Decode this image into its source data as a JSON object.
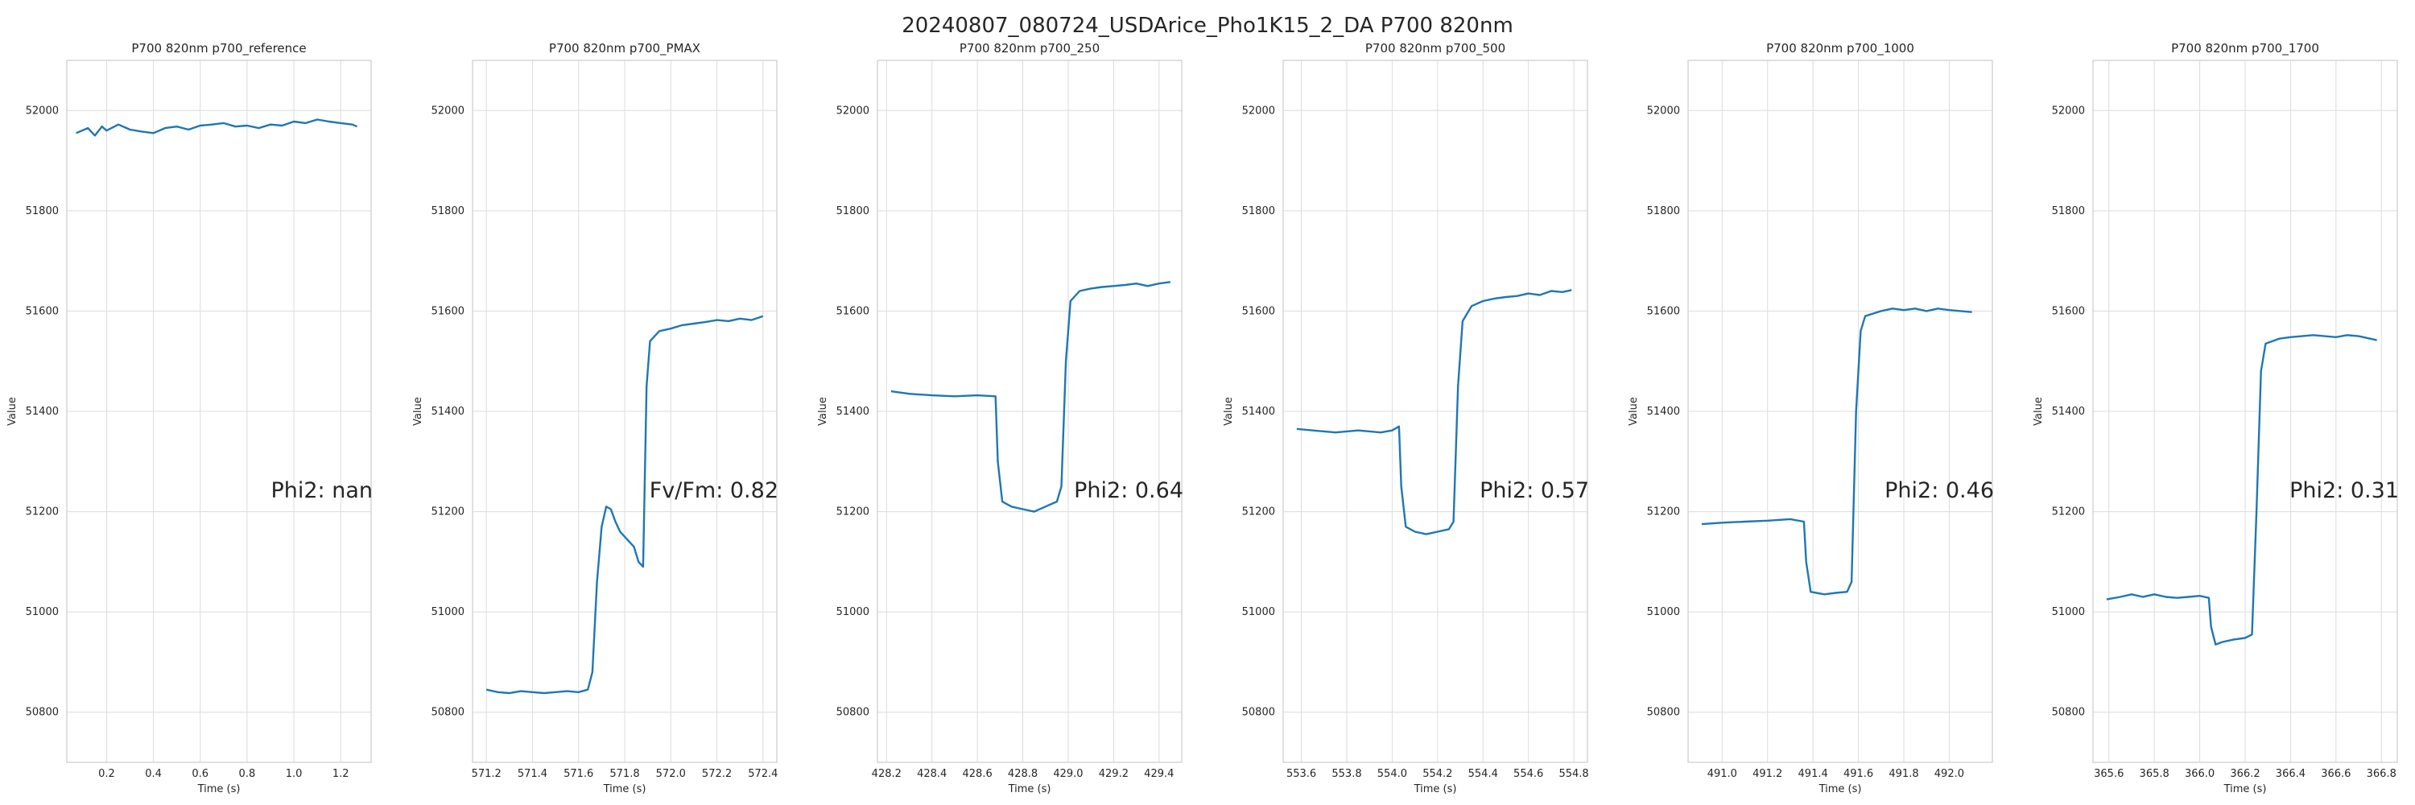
{
  "figure": {
    "title": "20240807_080724_USDArice_Pho1K15_2_DA P700 820nm",
    "line_color": "#1f77b4",
    "grid": true
  },
  "chart_data": [
    {
      "type": "line",
      "title": "P700 820nm p700_reference",
      "xlabel": "Time (s)",
      "ylabel": "Value",
      "xlim": [
        0.03,
        1.33
      ],
      "ylim": [
        50700,
        52100
      ],
      "xticks": [
        "0.2",
        "0.4",
        "0.6",
        "0.8",
        "1.0",
        "1.2"
      ],
      "yticks": [
        "50800",
        "51000",
        "51200",
        "51400",
        "51600",
        "51800",
        "52000"
      ],
      "annotation": "Phi2: nan",
      "points": [
        [
          0.07,
          51955
        ],
        [
          0.12,
          51965
        ],
        [
          0.15,
          51950
        ],
        [
          0.18,
          51968
        ],
        [
          0.2,
          51960
        ],
        [
          0.25,
          51972
        ],
        [
          0.3,
          51962
        ],
        [
          0.35,
          51958
        ],
        [
          0.4,
          51955
        ],
        [
          0.45,
          51965
        ],
        [
          0.5,
          51968
        ],
        [
          0.55,
          51962
        ],
        [
          0.6,
          51970
        ],
        [
          0.65,
          51972
        ],
        [
          0.7,
          51975
        ],
        [
          0.75,
          51968
        ],
        [
          0.8,
          51970
        ],
        [
          0.85,
          51965
        ],
        [
          0.9,
          51972
        ],
        [
          0.95,
          51970
        ],
        [
          1.0,
          51978
        ],
        [
          1.05,
          51975
        ],
        [
          1.1,
          51982
        ],
        [
          1.15,
          51978
        ],
        [
          1.2,
          51975
        ],
        [
          1.25,
          51972
        ],
        [
          1.27,
          51968
        ]
      ]
    },
    {
      "type": "line",
      "title": "P700 820nm p700_PMAX",
      "xlabel": "Time (s)",
      "ylabel": "Value",
      "xlim": [
        571.14,
        572.46
      ],
      "ylim": [
        50700,
        52100
      ],
      "xticks": [
        "571.2",
        "571.4",
        "571.6",
        "571.8",
        "572.0",
        "572.2",
        "572.4"
      ],
      "yticks": [
        "50800",
        "51000",
        "51200",
        "51400",
        "51600",
        "51800",
        "52000"
      ],
      "annotation": "Fv/Fm: 0.82",
      "points": [
        [
          571.2,
          50845
        ],
        [
          571.25,
          50840
        ],
        [
          571.3,
          50838
        ],
        [
          571.35,
          50842
        ],
        [
          571.4,
          50840
        ],
        [
          571.45,
          50838
        ],
        [
          571.5,
          50840
        ],
        [
          571.55,
          50842
        ],
        [
          571.6,
          50840
        ],
        [
          571.64,
          50845
        ],
        [
          571.66,
          50880
        ],
        [
          571.68,
          51060
        ],
        [
          571.7,
          51170
        ],
        [
          571.72,
          51210
        ],
        [
          571.74,
          51205
        ],
        [
          571.76,
          51180
        ],
        [
          571.78,
          51160
        ],
        [
          571.8,
          51150
        ],
        [
          571.82,
          51140
        ],
        [
          571.84,
          51130
        ],
        [
          571.86,
          51100
        ],
        [
          571.88,
          51090
        ],
        [
          571.895,
          51450
        ],
        [
          571.91,
          51540
        ],
        [
          571.95,
          51560
        ],
        [
          572.0,
          51565
        ],
        [
          572.05,
          51572
        ],
        [
          572.1,
          51575
        ],
        [
          572.15,
          51578
        ],
        [
          572.2,
          51582
        ],
        [
          572.25,
          51580
        ],
        [
          572.3,
          51585
        ],
        [
          572.35,
          51582
        ],
        [
          572.4,
          51590
        ]
      ]
    },
    {
      "type": "line",
      "title": "P700 820nm p700_250",
      "xlabel": "Time (s)",
      "ylabel": "Value",
      "xlim": [
        428.16,
        429.5
      ],
      "ylim": [
        50700,
        52100
      ],
      "xticks": [
        "428.2",
        "428.4",
        "428.6",
        "428.8",
        "429.0",
        "429.2",
        "429.4"
      ],
      "yticks": [
        "50800",
        "51000",
        "51200",
        "51400",
        "51600",
        "51800",
        "52000"
      ],
      "annotation": "Phi2: 0.64",
      "points": [
        [
          428.22,
          51440
        ],
        [
          428.3,
          51435
        ],
        [
          428.4,
          51432
        ],
        [
          428.5,
          51430
        ],
        [
          428.6,
          51432
        ],
        [
          428.68,
          51430
        ],
        [
          428.69,
          51300
        ],
        [
          428.71,
          51220
        ],
        [
          428.75,
          51210
        ],
        [
          428.8,
          51205
        ],
        [
          428.85,
          51200
        ],
        [
          428.9,
          51210
        ],
        [
          428.95,
          51220
        ],
        [
          428.97,
          51250
        ],
        [
          428.99,
          51500
        ],
        [
          429.01,
          51620
        ],
        [
          429.05,
          51640
        ],
        [
          429.1,
          51645
        ],
        [
          429.15,
          51648
        ],
        [
          429.2,
          51650
        ],
        [
          429.25,
          51652
        ],
        [
          429.3,
          51655
        ],
        [
          429.35,
          51650
        ],
        [
          429.4,
          51655
        ],
        [
          429.45,
          51658
        ]
      ]
    },
    {
      "type": "line",
      "title": "P700 820nm p700_500",
      "xlabel": "Time (s)",
      "ylabel": "Value",
      "xlim": [
        553.52,
        554.86
      ],
      "ylim": [
        50700,
        52100
      ],
      "xticks": [
        "553.6",
        "553.8",
        "554.0",
        "554.2",
        "554.4",
        "554.6",
        "554.8"
      ],
      "yticks": [
        "50800",
        "51000",
        "51200",
        "51400",
        "51600",
        "51800",
        "52000"
      ],
      "annotation": "Phi2: 0.57",
      "points": [
        [
          553.58,
          51365
        ],
        [
          553.65,
          51362
        ],
        [
          553.7,
          51360
        ],
        [
          553.75,
          51358
        ],
        [
          553.8,
          51360
        ],
        [
          553.85,
          51362
        ],
        [
          553.9,
          51360
        ],
        [
          553.95,
          51358
        ],
        [
          554.0,
          51362
        ],
        [
          554.03,
          51370
        ],
        [
          554.04,
          51250
        ],
        [
          554.06,
          51170
        ],
        [
          554.1,
          51160
        ],
        [
          554.15,
          51155
        ],
        [
          554.2,
          51160
        ],
        [
          554.25,
          51165
        ],
        [
          554.27,
          51180
        ],
        [
          554.29,
          51450
        ],
        [
          554.31,
          51580
        ],
        [
          554.35,
          51610
        ],
        [
          554.4,
          51620
        ],
        [
          554.45,
          51625
        ],
        [
          554.5,
          51628
        ],
        [
          554.55,
          51630
        ],
        [
          554.6,
          51635
        ],
        [
          554.65,
          51632
        ],
        [
          554.7,
          51640
        ],
        [
          554.75,
          51638
        ],
        [
          554.79,
          51642
        ]
      ]
    },
    {
      "type": "line",
      "title": "P700 820nm p700_1000",
      "xlabel": "Time (s)",
      "ylabel": "Value",
      "xlim": [
        490.85,
        492.19
      ],
      "ylim": [
        50700,
        52100
      ],
      "xticks": [
        "491.0",
        "491.2",
        "491.4",
        "491.6",
        "491.8",
        "492.0"
      ],
      "yticks": [
        "50800",
        "51000",
        "51200",
        "51400",
        "51600",
        "51800",
        "52000"
      ],
      "annotation": "Phi2: 0.46",
      "points": [
        [
          490.91,
          51175
        ],
        [
          491.0,
          51178
        ],
        [
          491.1,
          51180
        ],
        [
          491.2,
          51182
        ],
        [
          491.3,
          51185
        ],
        [
          491.36,
          51180
        ],
        [
          491.37,
          51100
        ],
        [
          491.39,
          51040
        ],
        [
          491.45,
          51035
        ],
        [
          491.5,
          51038
        ],
        [
          491.55,
          51040
        ],
        [
          491.57,
          51060
        ],
        [
          491.59,
          51400
        ],
        [
          491.61,
          51560
        ],
        [
          491.63,
          51590
        ],
        [
          491.7,
          51600
        ],
        [
          491.75,
          51605
        ],
        [
          491.8,
          51602
        ],
        [
          491.85,
          51605
        ],
        [
          491.9,
          51600
        ],
        [
          491.95,
          51605
        ],
        [
          492.0,
          51602
        ],
        [
          492.05,
          51600
        ],
        [
          492.1,
          51598
        ]
      ]
    },
    {
      "type": "line",
      "title": "P700 820nm p700_1700",
      "xlabel": "Time (s)",
      "ylabel": "Value",
      "xlim": [
        365.53,
        366.87
      ],
      "ylim": [
        50700,
        52100
      ],
      "xticks": [
        "365.6",
        "365.8",
        "366.0",
        "366.2",
        "366.4",
        "366.6",
        "366.8"
      ],
      "yticks": [
        "50800",
        "51000",
        "51200",
        "51400",
        "51600",
        "51800",
        "52000"
      ],
      "annotation": "Phi2: 0.31",
      "points": [
        [
          365.59,
          51025
        ],
        [
          365.65,
          51030
        ],
        [
          365.7,
          51035
        ],
        [
          365.75,
          51030
        ],
        [
          365.8,
          51035
        ],
        [
          365.85,
          51030
        ],
        [
          365.9,
          51028
        ],
        [
          365.95,
          51030
        ],
        [
          366.0,
          51032
        ],
        [
          366.04,
          51028
        ],
        [
          366.05,
          50970
        ],
        [
          366.07,
          50935
        ],
        [
          366.1,
          50940
        ],
        [
          366.15,
          50945
        ],
        [
          366.2,
          50948
        ],
        [
          366.23,
          50955
        ],
        [
          366.25,
          51200
        ],
        [
          366.27,
          51480
        ],
        [
          366.29,
          51535
        ],
        [
          366.35,
          51545
        ],
        [
          366.4,
          51548
        ],
        [
          366.45,
          51550
        ],
        [
          366.5,
          51552
        ],
        [
          366.55,
          51550
        ],
        [
          366.6,
          51548
        ],
        [
          366.65,
          51552
        ],
        [
          366.7,
          51550
        ],
        [
          366.75,
          51545
        ],
        [
          366.78,
          51542
        ]
      ]
    }
  ]
}
